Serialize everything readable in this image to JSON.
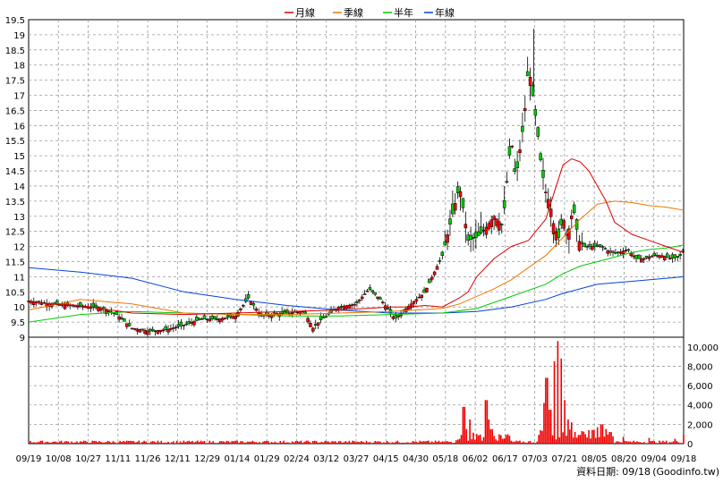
{
  "chart_data": {
    "type": "candlestick",
    "legend": [
      {
        "name": "月線",
        "color": "#dd0000"
      },
      {
        "name": "季線",
        "color": "#ee7700"
      },
      {
        "name": "半年",
        "color": "#00cc00"
      },
      {
        "name": "年線",
        "color": "#0044dd"
      }
    ],
    "price_axis": {
      "ylim": [
        9,
        19.5
      ],
      "ticks": [
        "19.5",
        "19",
        "18.5",
        "18",
        "17.5",
        "17",
        "16.5",
        "16",
        "15.5",
        "15",
        "14.5",
        "14",
        "13.5",
        "13",
        "12.5",
        "12",
        "11.5",
        "11",
        "10.5",
        "10",
        "9.5",
        "9"
      ]
    },
    "volume_axis": {
      "ylim": [
        0,
        11000
      ],
      "ticks": [
        "10,000",
        "8,000",
        "6,000",
        "4,000",
        "2,000",
        "0"
      ]
    },
    "x_ticks": [
      "09/19",
      "10/08",
      "10/27",
      "11/11",
      "11/26",
      "12/11",
      "12/29",
      "01/14",
      "01/29",
      "02/24",
      "03/12",
      "03/27",
      "04/15",
      "04/30",
      "05/18",
      "06/02",
      "06/17",
      "07/03",
      "07/21",
      "08/05",
      "08/20",
      "09/04",
      "09/18"
    ],
    "grid": true,
    "ma_month": [
      [
        0,
        10.15
      ],
      [
        60,
        10.05
      ],
      [
        120,
        9.8
      ],
      [
        180,
        9.75
      ],
      [
        240,
        9.8
      ],
      [
        300,
        9.85
      ],
      [
        360,
        9.9
      ],
      [
        420,
        10.0
      ],
      [
        440,
        10.0
      ],
      [
        460,
        10.05
      ],
      [
        480,
        10.0
      ],
      [
        500,
        10.3
      ],
      [
        510,
        10.5
      ],
      [
        520,
        11.0
      ],
      [
        540,
        11.6
      ],
      [
        560,
        12.0
      ],
      [
        580,
        12.2
      ],
      [
        600,
        12.9
      ],
      [
        610,
        13.8
      ],
      [
        620,
        14.7
      ],
      [
        630,
        14.9
      ],
      [
        640,
        14.8
      ],
      [
        650,
        14.5
      ],
      [
        660,
        14.0
      ],
      [
        670,
        13.5
      ],
      [
        680,
        12.8
      ],
      [
        700,
        12.4
      ],
      [
        720,
        12.2
      ],
      [
        740,
        12.0
      ],
      [
        760,
        11.8
      ]
    ],
    "ma_quarter": [
      [
        0,
        9.9
      ],
      [
        60,
        10.25
      ],
      [
        120,
        10.1
      ],
      [
        180,
        9.8
      ],
      [
        240,
        9.75
      ],
      [
        300,
        9.75
      ],
      [
        360,
        9.8
      ],
      [
        420,
        9.85
      ],
      [
        480,
        9.95
      ],
      [
        500,
        10.1
      ],
      [
        540,
        10.6
      ],
      [
        560,
        10.9
      ],
      [
        580,
        11.3
      ],
      [
        600,
        11.7
      ],
      [
        620,
        12.3
      ],
      [
        640,
        12.9
      ],
      [
        660,
        13.4
      ],
      [
        680,
        13.5
      ],
      [
        700,
        13.45
      ],
      [
        720,
        13.35
      ],
      [
        740,
        13.3
      ],
      [
        760,
        13.2
      ]
    ],
    "ma_half": [
      [
        0,
        9.5
      ],
      [
        60,
        9.75
      ],
      [
        120,
        9.85
      ],
      [
        180,
        9.8
      ],
      [
        240,
        9.75
      ],
      [
        300,
        9.7
      ],
      [
        360,
        9.7
      ],
      [
        420,
        9.75
      ],
      [
        480,
        9.8
      ],
      [
        520,
        9.95
      ],
      [
        560,
        10.35
      ],
      [
        600,
        10.75
      ],
      [
        620,
        11.1
      ],
      [
        640,
        11.35
      ],
      [
        660,
        11.5
      ],
      [
        680,
        11.65
      ],
      [
        700,
        11.8
      ],
      [
        720,
        11.9
      ],
      [
        740,
        11.95
      ],
      [
        760,
        12.05
      ]
    ],
    "ma_year": [
      [
        0,
        11.3
      ],
      [
        60,
        11.15
      ],
      [
        120,
        10.95
      ],
      [
        180,
        10.5
      ],
      [
        240,
        10.25
      ],
      [
        300,
        10.05
      ],
      [
        360,
        9.9
      ],
      [
        420,
        9.8
      ],
      [
        480,
        9.8
      ],
      [
        520,
        9.85
      ],
      [
        560,
        10.0
      ],
      [
        600,
        10.25
      ],
      [
        620,
        10.45
      ],
      [
        640,
        10.6
      ],
      [
        660,
        10.75
      ],
      [
        700,
        10.85
      ],
      [
        740,
        10.95
      ],
      [
        760,
        11.0
      ]
    ],
    "volume_spikes": [
      [
        505,
        3800
      ],
      [
        508,
        1500
      ],
      [
        512,
        2500
      ],
      [
        531,
        4500
      ],
      [
        534,
        2500
      ],
      [
        537,
        1500
      ],
      [
        540,
        800
      ],
      [
        598,
        4200
      ],
      [
        601,
        6800
      ],
      [
        605,
        3500
      ],
      [
        610,
        8500
      ],
      [
        614,
        10600
      ],
      [
        618,
        8800
      ],
      [
        622,
        4500
      ],
      [
        626,
        2500
      ],
      [
        630,
        2200
      ],
      [
        634,
        1200
      ],
      [
        639,
        900
      ],
      [
        650,
        1400
      ],
      [
        660,
        1700
      ],
      [
        665,
        2000
      ],
      [
        675,
        1200
      ],
      [
        690,
        700
      ],
      [
        720,
        600
      ],
      [
        750,
        500
      ],
      [
        760,
        900
      ]
    ]
  },
  "footer": {
    "date_label": "資料日期: 09/18",
    "source": "(Goodinfo.tw)"
  }
}
